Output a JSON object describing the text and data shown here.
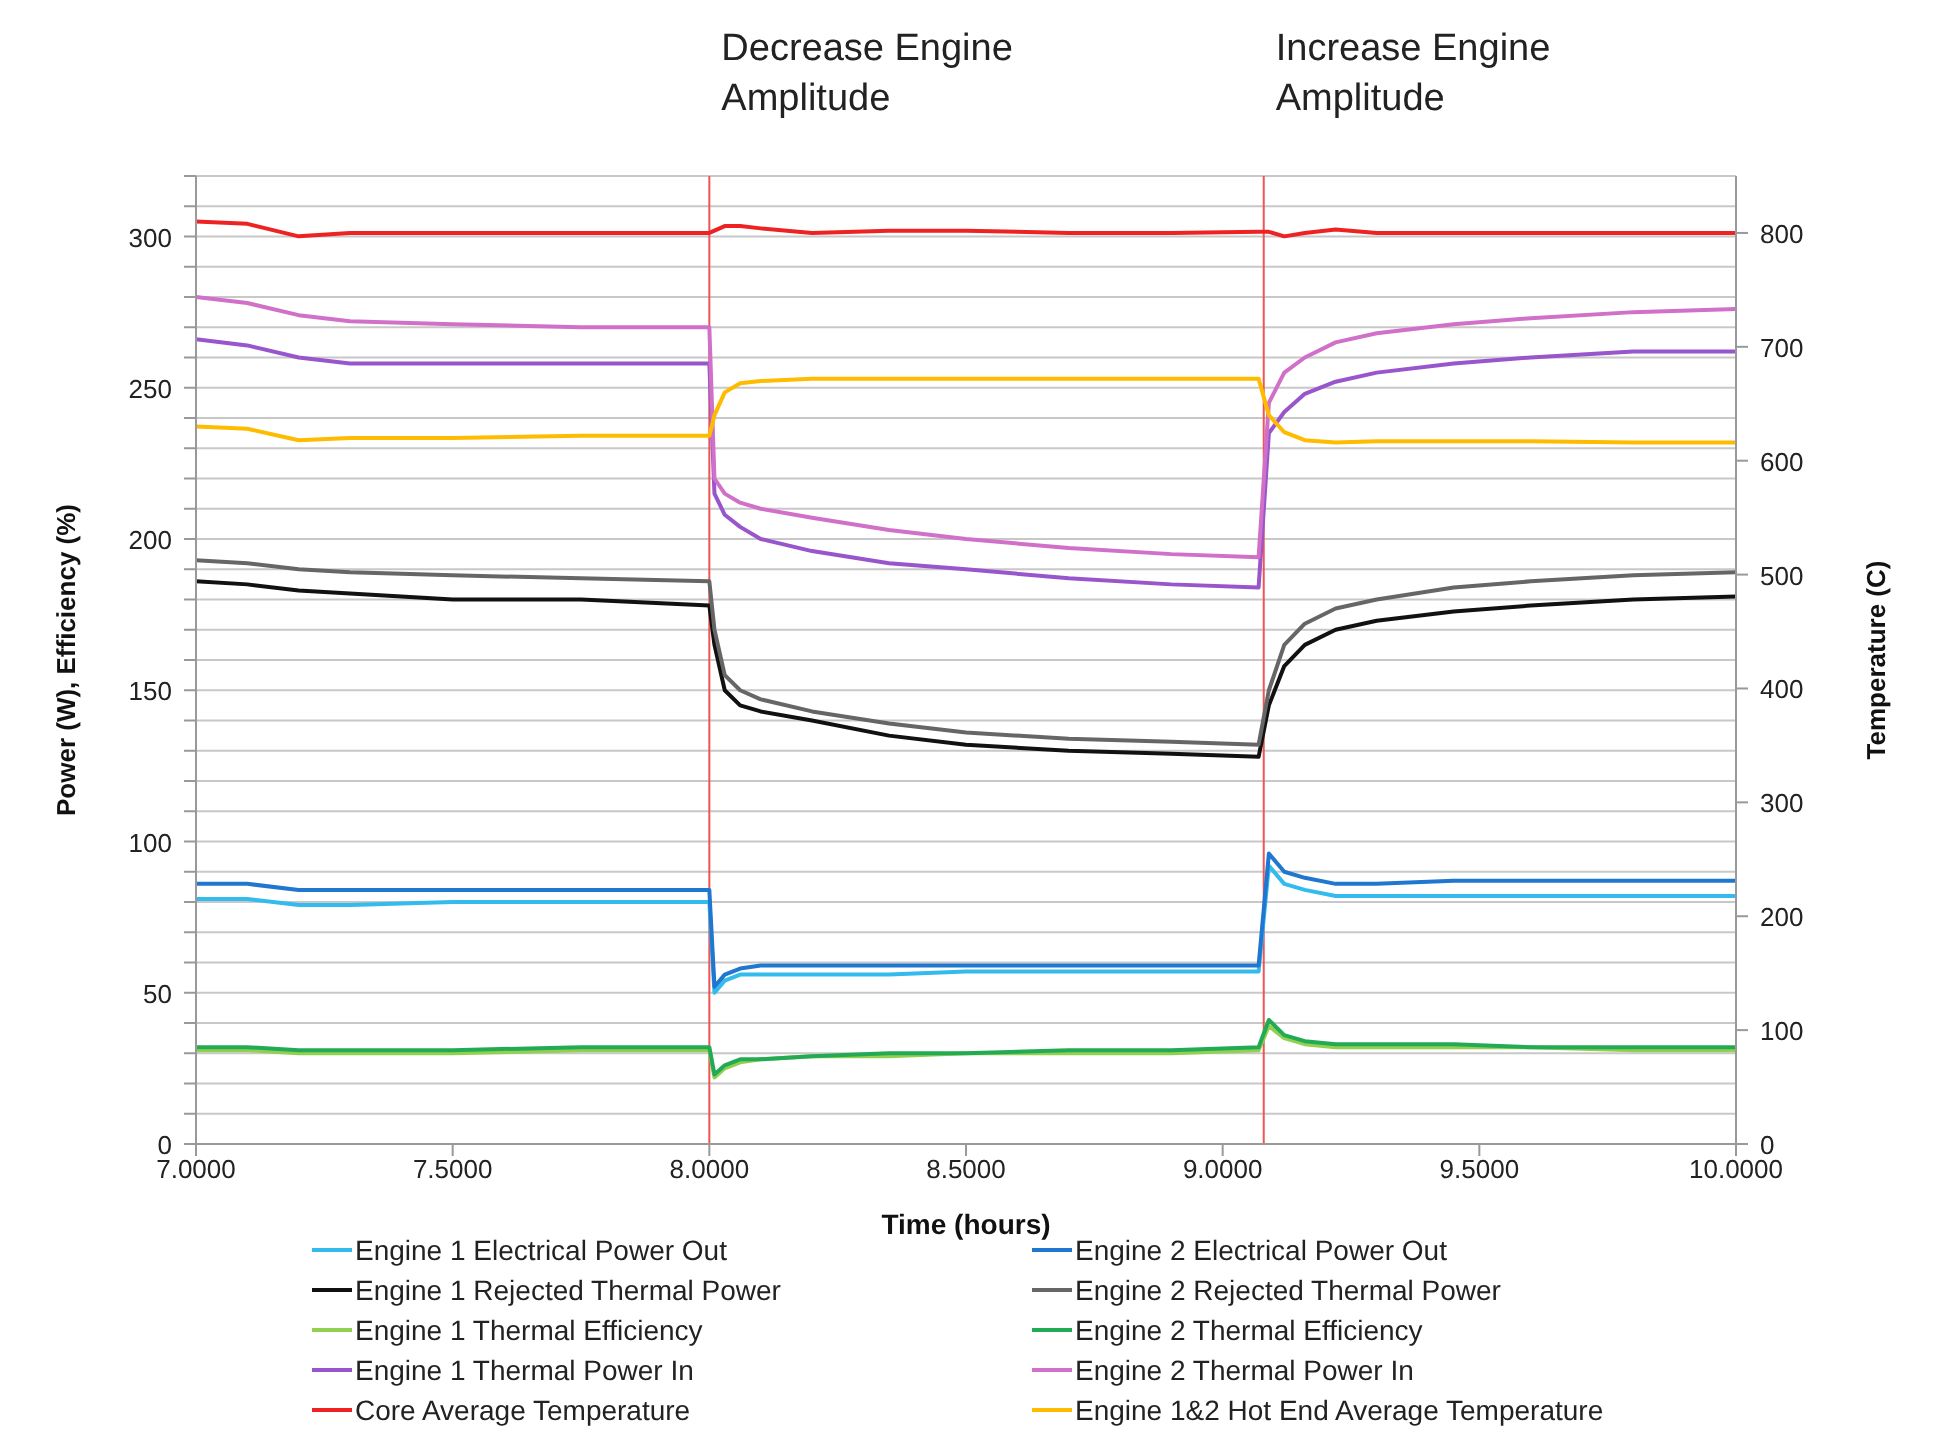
{
  "chart_data": {
    "type": "line",
    "xlabel": "Time (hours)",
    "ylabel": "Power (W), Efficiency (%)",
    "y2label": "Temperature (C)",
    "x": [
      7.0,
      7.1,
      7.2,
      7.3,
      7.5,
      7.75,
      8.0,
      8.01,
      8.03,
      8.06,
      8.1,
      8.2,
      8.35,
      8.5,
      8.7,
      8.9,
      9.07,
      9.09,
      9.12,
      9.16,
      9.22,
      9.3,
      9.45,
      9.6,
      9.8,
      10.0
    ],
    "xlim": [
      7.0,
      10.0
    ],
    "xticks": [
      {
        "value": 7.0,
        "label": "7.0000"
      },
      {
        "value": 7.5,
        "label": "7.5000"
      },
      {
        "value": 8.0,
        "label": "8.0000"
      },
      {
        "value": 8.5,
        "label": "8.5000"
      },
      {
        "value": 9.0,
        "label": "9.0000"
      },
      {
        "value": 9.5,
        "label": "9.5000"
      },
      {
        "value": 10.0,
        "label": "10.0000"
      }
    ],
    "ylim": [
      0,
      320
    ],
    "yticks": [
      0,
      {
        "value": 10,
        "label": null
      },
      {
        "value": 20,
        "label": null
      },
      {
        "value": 30,
        "label": null
      },
      {
        "value": 40,
        "label": null
      },
      50,
      {
        "value": 60,
        "label": null
      },
      {
        "value": 70,
        "label": null
      },
      {
        "value": 80,
        "label": null
      },
      {
        "value": 90,
        "label": null
      },
      100,
      {
        "value": 110,
        "label": null
      },
      {
        "value": 120,
        "label": null
      },
      {
        "value": 130,
        "label": null
      },
      {
        "value": 140,
        "label": null
      },
      150,
      {
        "value": 160,
        "label": null
      },
      {
        "value": 170,
        "label": null
      },
      {
        "value": 180,
        "label": null
      },
      {
        "value": 190,
        "label": null
      },
      200,
      {
        "value": 210,
        "label": null
      },
      {
        "value": 220,
        "label": null
      },
      {
        "value": 230,
        "label": null
      },
      {
        "value": 240,
        "label": null
      },
      250,
      {
        "value": 260,
        "label": null
      },
      {
        "value": 270,
        "label": null
      },
      {
        "value": 280,
        "label": null
      },
      {
        "value": 290,
        "label": null
      },
      300,
      {
        "value": 310,
        "label": null
      },
      {
        "value": 320,
        "label": null
      }
    ],
    "y2lim": [
      0,
      850
    ],
    "y2ticks": [
      0,
      100,
      200,
      300,
      400,
      500,
      600,
      700,
      800
    ],
    "grid": "y",
    "legend": "bottom",
    "marker": "none",
    "line_style": "solid",
    "ref_lines": [
      {
        "axis": "x",
        "value": 8.0,
        "label": "Decrease Engine Amplitude",
        "color": "#ee5555"
      },
      {
        "axis": "x",
        "value": 9.08,
        "label": "Increase Engine Amplitude",
        "color": "#ee5555"
      }
    ],
    "series": [
      {
        "name": "Engine 1 Electrical Power Out",
        "color": "#33bbee",
        "values": [
          81,
          81,
          79,
          79,
          80,
          80,
          80,
          50,
          54,
          56,
          56,
          56,
          56,
          57,
          57,
          57,
          57,
          92,
          86,
          84,
          82,
          82,
          82,
          82,
          82,
          82
        ]
      },
      {
        "name": "Engine 2 Electrical Power Out",
        "color": "#1f77d0",
        "values": [
          86,
          86,
          84,
          84,
          84,
          84,
          84,
          52,
          56,
          58,
          59,
          59,
          59,
          59,
          59,
          59,
          59,
          96,
          90,
          88,
          86,
          86,
          87,
          87,
          87,
          87
        ]
      },
      {
        "name": "Engine 1 Rejected Thermal Power",
        "color": "#111111",
        "values": [
          186,
          185,
          183,
          182,
          180,
          180,
          178,
          165,
          150,
          145,
          143,
          140,
          135,
          132,
          130,
          129,
          128,
          145,
          158,
          165,
          170,
          173,
          176,
          178,
          180,
          181
        ]
      },
      {
        "name": "Engine 2 Rejected Thermal Power",
        "color": "#666666",
        "values": [
          193,
          192,
          190,
          189,
          188,
          187,
          186,
          170,
          155,
          150,
          147,
          143,
          139,
          136,
          134,
          133,
          132,
          150,
          165,
          172,
          177,
          180,
          184,
          186,
          188,
          189
        ]
      },
      {
        "name": "Engine 1 Thermal Efficiency",
        "color": "#92d050",
        "values": [
          31,
          31,
          30,
          30,
          30,
          31,
          31,
          22,
          25,
          27,
          28,
          29,
          29,
          30,
          30,
          30,
          31,
          39,
          35,
          33,
          32,
          32,
          32,
          32,
          31,
          31
        ]
      },
      {
        "name": "Engine 2 Thermal Efficiency",
        "color": "#22aa55",
        "values": [
          32,
          32,
          31,
          31,
          31,
          32,
          32,
          23,
          26,
          28,
          28,
          29,
          30,
          30,
          31,
          31,
          32,
          41,
          36,
          34,
          33,
          33,
          33,
          32,
          32,
          32
        ]
      },
      {
        "name": "Engine 1 Thermal Power In",
        "color": "#9955cc",
        "values": [
          266,
          264,
          260,
          258,
          258,
          258,
          258,
          215,
          208,
          204,
          200,
          196,
          192,
          190,
          187,
          185,
          184,
          235,
          242,
          248,
          252,
          255,
          258,
          260,
          262,
          262
        ]
      },
      {
        "name": "Engine 2 Thermal Power In",
        "color": "#d070c8",
        "values": [
          280,
          278,
          274,
          272,
          271,
          270,
          270,
          220,
          215,
          212,
          210,
          207,
          203,
          200,
          197,
          195,
          194,
          245,
          255,
          260,
          265,
          268,
          271,
          273,
          275,
          276
        ]
      },
      {
        "name": "Core Average Temperature",
        "color": "#ee2222",
        "axis": "y2",
        "values": [
          810,
          808,
          797,
          800,
          800,
          800,
          800,
          802,
          806,
          806,
          804,
          800,
          802,
          802,
          800,
          800,
          801,
          801,
          797,
          800,
          803,
          800,
          800,
          800,
          800,
          800
        ]
      },
      {
        "name": "Engine 1&2 Hot End Average Temperature",
        "color": "#ffbb00",
        "axis": "y2",
        "values": [
          630,
          628,
          618,
          620,
          620,
          622,
          622,
          640,
          660,
          668,
          670,
          672,
          672,
          672,
          672,
          672,
          672,
          640,
          625,
          618,
          616,
          617,
          617,
          617,
          616,
          616
        ]
      }
    ]
  }
}
